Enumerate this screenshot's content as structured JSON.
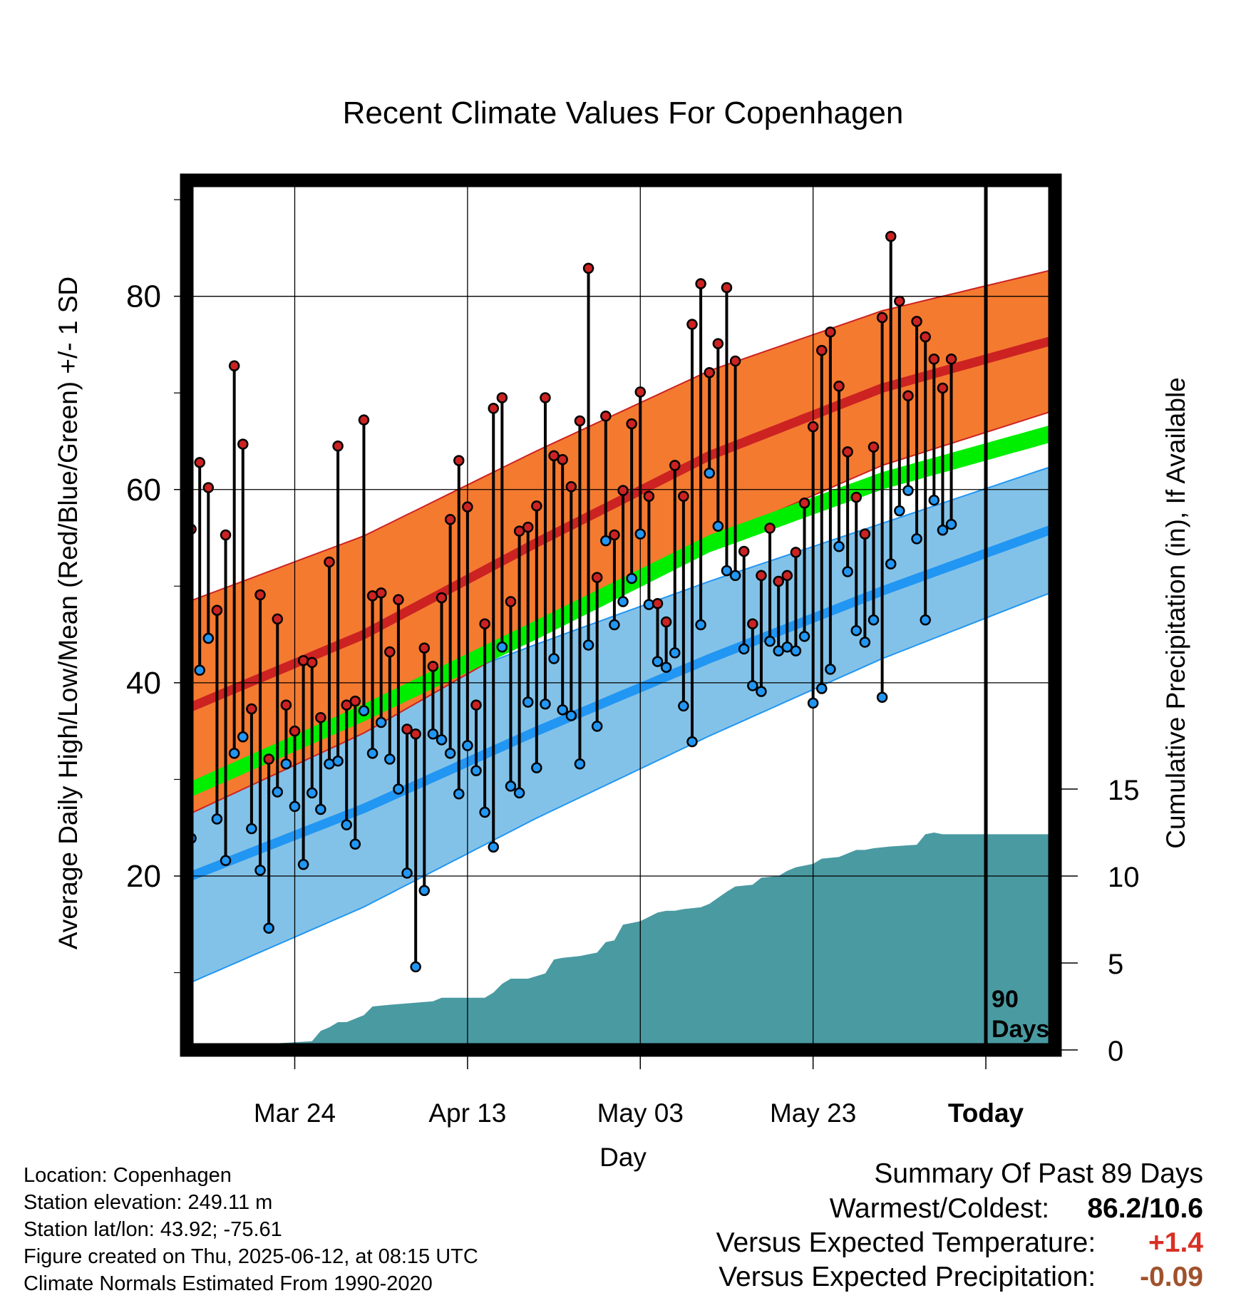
{
  "colors": {
    "high_band": "#f47a30",
    "high_mean": "#cc2222",
    "low_band": "#83c2e8",
    "low_mean": "#2196f3",
    "mean_band": "#00ee00",
    "precip": "#4a9aa2",
    "frame": "#000000",
    "warm_text": "#d93025",
    "precip_text": "#a0522d"
  },
  "chart_data": {
    "type": "line",
    "title": "Recent Climate Values For Copenhagen",
    "xlabel": "Day",
    "ylabel": "Average Daily High/Low/Mean (Red/Blue/Green) +/- 1 SD",
    "y2label": "Cumulative Precipitation (in), If Available",
    "x_ticks": [
      "Mar 24",
      "Apr 13",
      "May 03",
      "May 23",
      "Today"
    ],
    "y_ticks": [
      20,
      40,
      60,
      80
    ],
    "y2_ticks": [
      0,
      5,
      10,
      15
    ],
    "today_label": [
      "90",
      "Days"
    ],
    "ylim": [
      2,
      92
    ],
    "y2lim": [
      0,
      50
    ],
    "xlim": [
      -0.5,
      100
    ],
    "grid": true,
    "normals": {
      "days": [
        0,
        20,
        40,
        60,
        80,
        100
      ],
      "high_mean": [
        37.5,
        45.0,
        54.5,
        63.5,
        70.5,
        75.5
      ],
      "high_sd": [
        11.0,
        10.2,
        9.5,
        8.8,
        8.0,
        7.3
      ],
      "low_mean": [
        20.0,
        27.0,
        35.0,
        42.5,
        49.5,
        56.0
      ],
      "low_sd": [
        11.0,
        10.2,
        9.0,
        8.0,
        7.0,
        6.5
      ],
      "mean_lower": [
        28.2,
        36.0,
        44.5,
        53.5,
        60.0,
        65.0
      ],
      "mean_upper": [
        29.8,
        37.8,
        46.5,
        55.3,
        61.8,
        66.8
      ]
    },
    "observed": {
      "high": [
        55.9,
        62.8,
        60.2,
        47.5,
        55.3,
        72.8,
        64.7,
        37.3,
        49.1,
        32.1,
        46.6,
        37.7,
        35.0,
        42.3,
        42.1,
        36.4,
        52.5,
        64.5,
        37.7,
        38.1,
        67.2,
        49.0,
        49.3,
        43.2,
        48.6,
        35.2,
        34.7,
        43.6,
        41.7,
        48.8,
        56.9,
        63.0,
        58.2,
        37.7,
        46.1,
        68.4,
        69.5,
        48.4,
        55.7,
        56.1,
        58.3,
        69.5,
        63.5,
        63.1,
        60.3,
        67.1,
        82.9,
        50.9,
        67.6,
        55.3,
        59.9,
        66.8,
        70.1,
        59.3,
        48.2,
        46.3,
        62.5,
        59.3,
        77.1,
        81.3,
        72.1,
        75.1,
        80.9,
        73.3,
        53.6,
        46.1,
        51.1,
        56.0,
        50.5,
        51.1,
        53.5,
        58.6,
        66.5,
        74.4,
        76.3,
        70.7,
        63.9,
        59.2,
        55.4,
        64.4,
        77.8,
        86.2,
        79.5,
        69.7,
        77.4,
        75.8,
        73.5,
        70.5,
        73.5
      ],
      "low": [
        23.9,
        41.3,
        44.6,
        25.9,
        21.6,
        32.7,
        34.4,
        24.9,
        20.6,
        14.6,
        28.7,
        31.6,
        27.2,
        21.2,
        28.6,
        26.9,
        31.6,
        31.9,
        25.3,
        23.3,
        37.1,
        32.7,
        35.9,
        32.1,
        29.0,
        20.3,
        10.6,
        18.5,
        34.7,
        34.1,
        32.7,
        28.5,
        33.5,
        30.9,
        26.6,
        23.0,
        43.7,
        29.3,
        28.6,
        38.0,
        31.2,
        37.8,
        42.5,
        37.2,
        36.6,
        31.6,
        43.9,
        35.5,
        54.7,
        46.0,
        48.4,
        50.8,
        55.4,
        48.1,
        42.2,
        41.6,
        43.1,
        37.6,
        33.9,
        46.0,
        61.7,
        56.2,
        51.6,
        51.1,
        43.5,
        39.7,
        39.1,
        44.3,
        43.3,
        43.7,
        43.3,
        44.8,
        37.9,
        39.4,
        41.4,
        54.1,
        51.5,
        45.4,
        44.2,
        46.5,
        38.5,
        52.3,
        57.8,
        59.9,
        54.9,
        46.5,
        58.9,
        55.8,
        56.4
      ]
    },
    "precip": {
      "days": [
        0,
        6,
        7,
        14,
        15,
        16,
        17,
        18,
        20,
        21,
        23,
        28,
        29,
        34,
        35,
        36,
        37,
        39,
        41,
        42,
        43,
        45,
        47,
        48,
        49,
        50,
        52,
        54,
        55,
        56,
        57,
        59,
        60,
        62,
        63,
        65,
        66,
        68,
        69,
        70,
        71,
        72,
        73,
        75,
        77,
        78,
        79,
        81,
        84,
        85,
        86,
        87,
        90
      ],
      "values": [
        0,
        0,
        0.3,
        0.5,
        1.1,
        1.3,
        1.6,
        1.6,
        2.0,
        2.5,
        2.6,
        2.8,
        3.0,
        3.0,
        3.3,
        3.8,
        4.1,
        4.1,
        4.4,
        5.2,
        5.3,
        5.4,
        5.6,
        6.2,
        6.3,
        7.2,
        7.4,
        7.9,
        8.0,
        8.0,
        8.1,
        8.2,
        8.4,
        9.1,
        9.4,
        9.5,
        9.9,
        10.0,
        10.3,
        10.5,
        10.6,
        10.7,
        11.0,
        11.1,
        11.5,
        11.5,
        11.6,
        11.7,
        11.8,
        12.4,
        12.5,
        12.4,
        12.4
      ]
    }
  },
  "info": {
    "location": "Location: Copenhagen",
    "elevation": "Station elevation: 249.11 m",
    "latlon": "Station lat/lon: 43.92; -75.61",
    "created": "Figure created on Thu, 2025-06-12, at 08:15 UTC",
    "normals": "Climate Normals Estimated From 1990-2020"
  },
  "summary": {
    "heading": "Summary Of Past 89 Days",
    "warmest_label": "Warmest/Coldest:",
    "warmest_value": "86.2/10.6",
    "temp_label": "Versus Expected Temperature:",
    "temp_value": "+1.4",
    "precip_label": "Versus Expected Precipitation:",
    "precip_value": "-0.09"
  }
}
